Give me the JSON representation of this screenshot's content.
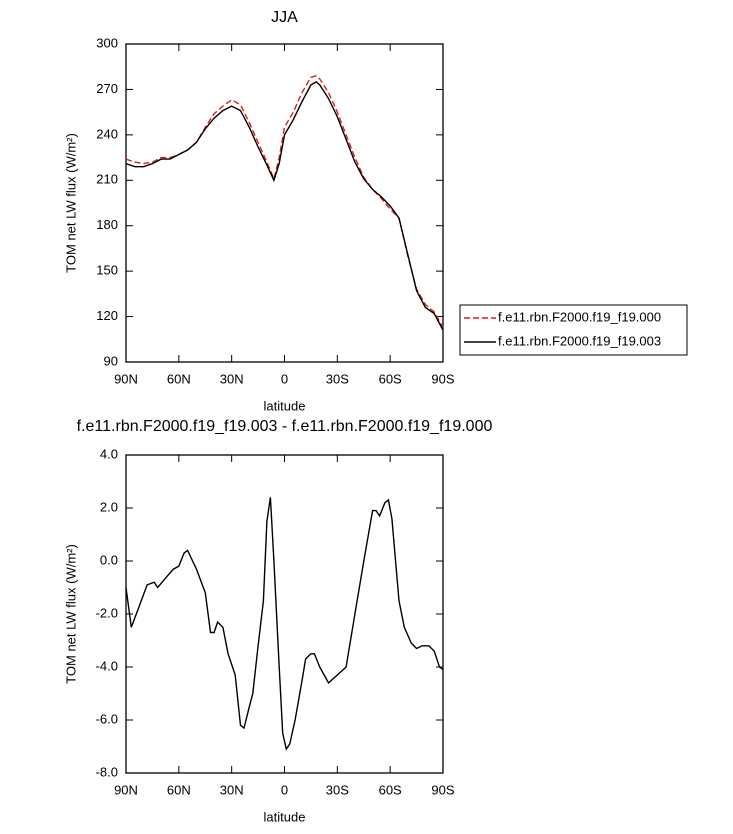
{
  "chart_data": [
    {
      "type": "line",
      "title": "JJA",
      "x_label": "latitude",
      "y_label": "TOM net LW flux (W/m²)",
      "x": [
        90,
        85,
        80,
        75,
        70,
        65,
        60,
        55,
        50,
        45,
        40,
        35,
        30,
        25,
        20,
        15,
        10,
        6,
        3,
        0,
        -5,
        -10,
        -15,
        -18,
        -20,
        -25,
        -30,
        -35,
        -40,
        -45,
        -50,
        -55,
        -60,
        -65,
        -70,
        -75,
        -80,
        -85,
        -90
      ],
      "xlim": [
        90,
        -90
      ],
      "xticks": [
        {
          "value": 90,
          "label": "90N"
        },
        {
          "value": 60,
          "label": "60N"
        },
        {
          "value": 30,
          "label": "30N"
        },
        0,
        {
          "value": -30,
          "label": "30S"
        },
        {
          "value": -60,
          "label": "60S"
        },
        {
          "value": -90,
          "label": "90S"
        }
      ],
      "ylim": [
        90,
        300
      ],
      "yticks": [
        90,
        120,
        150,
        180,
        210,
        240,
        270,
        300
      ],
      "legend": "right",
      "series": [
        {
          "name": "f.e11.rbn.F2000.f19_f19.000",
          "color": "#e41a1c",
          "dash": true,
          "values": [
            224,
            222,
            221,
            222,
            225,
            225,
            227,
            230,
            235,
            245,
            254,
            259,
            263,
            260,
            248,
            235,
            222,
            211,
            225,
            245,
            255,
            268,
            278,
            279,
            277,
            268,
            255,
            240,
            225,
            212,
            204,
            198,
            191,
            185,
            160,
            138,
            128,
            123,
            113
          ]
        },
        {
          "name": "f.e11.rbn.F2000.f19_f19.003",
          "color": "#000000",
          "dash": false,
          "values": [
            221,
            219,
            219,
            221,
            224,
            224,
            227,
            230,
            235,
            244,
            251,
            256,
            259,
            256,
            245,
            232,
            220,
            210,
            221,
            240,
            250,
            262,
            273,
            275,
            273,
            264,
            252,
            237,
            222,
            211,
            204,
            199,
            193,
            185,
            161,
            137,
            126,
            122,
            111
          ]
        }
      ]
    },
    {
      "type": "line",
      "title": "f.e11.rbn.F2000.f19_f19.003 - f.e11.rbn.F2000.f19_f19.000",
      "x_label": "latitude",
      "y_label": "TOM net LW flux (W/m²)",
      "x": [
        90,
        87,
        83,
        78,
        74,
        72,
        67,
        63,
        60,
        57,
        55,
        50,
        45,
        42,
        40,
        38,
        35,
        32,
        28,
        25,
        23,
        20,
        18,
        15,
        12,
        10,
        8,
        6,
        3,
        1,
        -1,
        -3,
        -6,
        -10,
        -12,
        -15,
        -17,
        -20,
        -25,
        -30,
        -35,
        -40,
        -45,
        -50,
        -52,
        -54,
        -57,
        -59,
        -61,
        -65,
        -68,
        -72,
        -75,
        -78,
        -82,
        -85,
        -88,
        -90
      ],
      "xlim": [
        90,
        -90
      ],
      "xticks": [
        {
          "value": 90,
          "label": "90N"
        },
        {
          "value": 60,
          "label": "60N"
        },
        {
          "value": 30,
          "label": "30N"
        },
        0,
        {
          "value": -30,
          "label": "30S"
        },
        {
          "value": -60,
          "label": "60S"
        },
        {
          "value": -90,
          "label": "90S"
        }
      ],
      "ylim": [
        -8,
        4
      ],
      "yticks": [
        {
          "value": -8,
          "label": "-8.0"
        },
        {
          "value": -6,
          "label": "-6.0"
        },
        {
          "value": -4,
          "label": "-4.0"
        },
        {
          "value": -2,
          "label": "-2.0"
        },
        {
          "value": 0,
          "label": "0.0"
        },
        {
          "value": 2,
          "label": "2.0"
        },
        {
          "value": 4,
          "label": "4.0"
        }
      ],
      "series": [
        {
          "color": "#000000",
          "dash": false,
          "values": [
            -1,
            -2.5,
            -1.8,
            -0.9,
            -0.8,
            -1.0,
            -0.6,
            -0.3,
            -0.2,
            0.3,
            0.4,
            -0.3,
            -1.2,
            -2.7,
            -2.7,
            -2.3,
            -2.5,
            -3.5,
            -4.3,
            -6.2,
            -6.3,
            -5.5,
            -5.0,
            -3.2,
            -1.5,
            1.5,
            2.4,
            0,
            -4,
            -6.5,
            -7.1,
            -6.9,
            -6.0,
            -4.5,
            -3.7,
            -3.5,
            -3.5,
            -4.0,
            -4.6,
            -4.3,
            -4.0,
            -2,
            0,
            1.9,
            1.9,
            1.7,
            2.2,
            2.3,
            1.6,
            -1.5,
            -2.5,
            -3.1,
            -3.3,
            -3.2,
            -3.2,
            -3.4,
            -4.0,
            -4.1
          ]
        }
      ]
    }
  ]
}
